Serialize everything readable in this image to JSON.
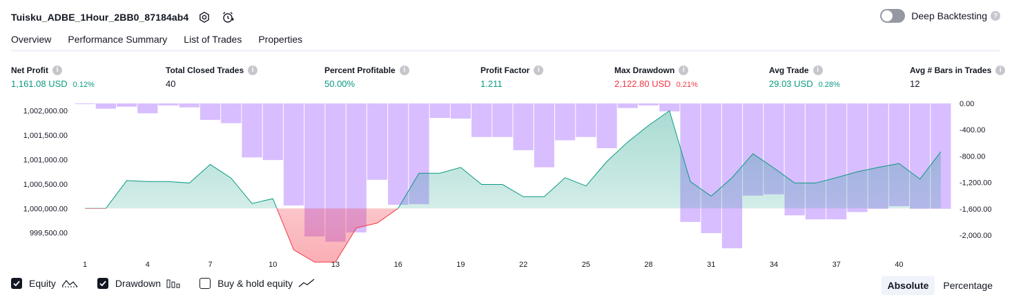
{
  "header": {
    "strategy_name": "Tuisku_ADBE_1Hour_2BB0_87184ab4",
    "deep_backtesting_label": "Deep Backtesting"
  },
  "tabs": [
    "Overview",
    "Performance Summary",
    "List of Trades",
    "Properties"
  ],
  "metrics": [
    {
      "label": "Net Profit",
      "value": "1,161.08 USD",
      "pct": "0.12%",
      "color": "green"
    },
    {
      "label": "Total Closed Trades",
      "value": "40",
      "pct": "",
      "color": "neutral"
    },
    {
      "label": "Percent Profitable",
      "value": "50.00%",
      "pct": "",
      "color": "green"
    },
    {
      "label": "Profit Factor",
      "value": "1.211",
      "pct": "",
      "color": "green"
    },
    {
      "label": "Max Drawdown",
      "value": "2,122.80 USD",
      "pct": "0.21%",
      "color": "red"
    },
    {
      "label": "Avg Trade",
      "value": "29.03 USD",
      "pct": "0.28%",
      "color": "green"
    },
    {
      "label": "Avg # Bars in Trades",
      "value": "12",
      "pct": "",
      "color": "neutral"
    }
  ],
  "legend": {
    "equity": "Equity",
    "drawdown": "Drawdown",
    "buy_hold": "Buy & hold equity"
  },
  "modes": {
    "absolute": "Absolute",
    "percentage": "Percentage"
  },
  "colors": {
    "green": "#089981",
    "red": "#f23645",
    "drawdown_bar": "#d1b3ff",
    "equity_fill": "#c6ebe0"
  },
  "chart_data": {
    "type": "line",
    "x": [
      1,
      2,
      3,
      4,
      5,
      6,
      7,
      8,
      9,
      10,
      11,
      12,
      13,
      14,
      15,
      16,
      17,
      18,
      19,
      20,
      21,
      22,
      23,
      24,
      25,
      26,
      27,
      28,
      29,
      30,
      31,
      32,
      33,
      34,
      35,
      36,
      37,
      38,
      39,
      40,
      41,
      42
    ],
    "x_ticks": [
      1,
      4,
      7,
      10,
      13,
      16,
      19,
      22,
      25,
      28,
      31,
      34,
      37,
      40
    ],
    "baseline": 1000000,
    "left_axis": {
      "ticks": [
        "1,002,000.00",
        "1,001,500.00",
        "1,001,000.00",
        "1,000,500.00",
        "1,000,000.00",
        "999,500.00"
      ],
      "ylim": [
        999100,
        1002150
      ]
    },
    "right_axis": {
      "ticks": [
        "0.00",
        "-400.00",
        "-800.00",
        "-1,200.00",
        "-1,600.00",
        "-2,000.00"
      ],
      "ylim": [
        -2280,
        20
      ]
    },
    "series": [
      {
        "name": "Equity",
        "values": [
          1000000,
          1000000,
          1000570,
          1000550,
          1000550,
          1000520,
          1000900,
          1000620,
          1000100,
          1000200,
          999150,
          998900,
          998900,
          999600,
          999700,
          1000000,
          1000720,
          1000720,
          1000840,
          1000490,
          1000490,
          1000240,
          1000240,
          1000630,
          1000460,
          1000960,
          1001360,
          1001700,
          1002000,
          1000550,
          1000250,
          1000630,
          1001120,
          1000830,
          1000520,
          1000520,
          1000630,
          1000750,
          1000840,
          1000920,
          1000600,
          1001160
        ]
      },
      {
        "name": "Drawdown",
        "values": [
          -10,
          -80,
          -50,
          -150,
          -30,
          -60,
          -250,
          -300,
          -820,
          -860,
          -1550,
          -2020,
          -2100,
          -1960,
          -1160,
          -1540,
          -1530,
          -220,
          -230,
          -510,
          -510,
          -710,
          -970,
          -560,
          -510,
          -680,
          -70,
          -30,
          -120,
          -1800,
          -1970,
          -2200,
          -1400,
          -1380,
          -1700,
          -1760,
          -1760,
          -1650,
          -1600,
          -1560,
          -1600,
          -1600
        ]
      }
    ]
  }
}
